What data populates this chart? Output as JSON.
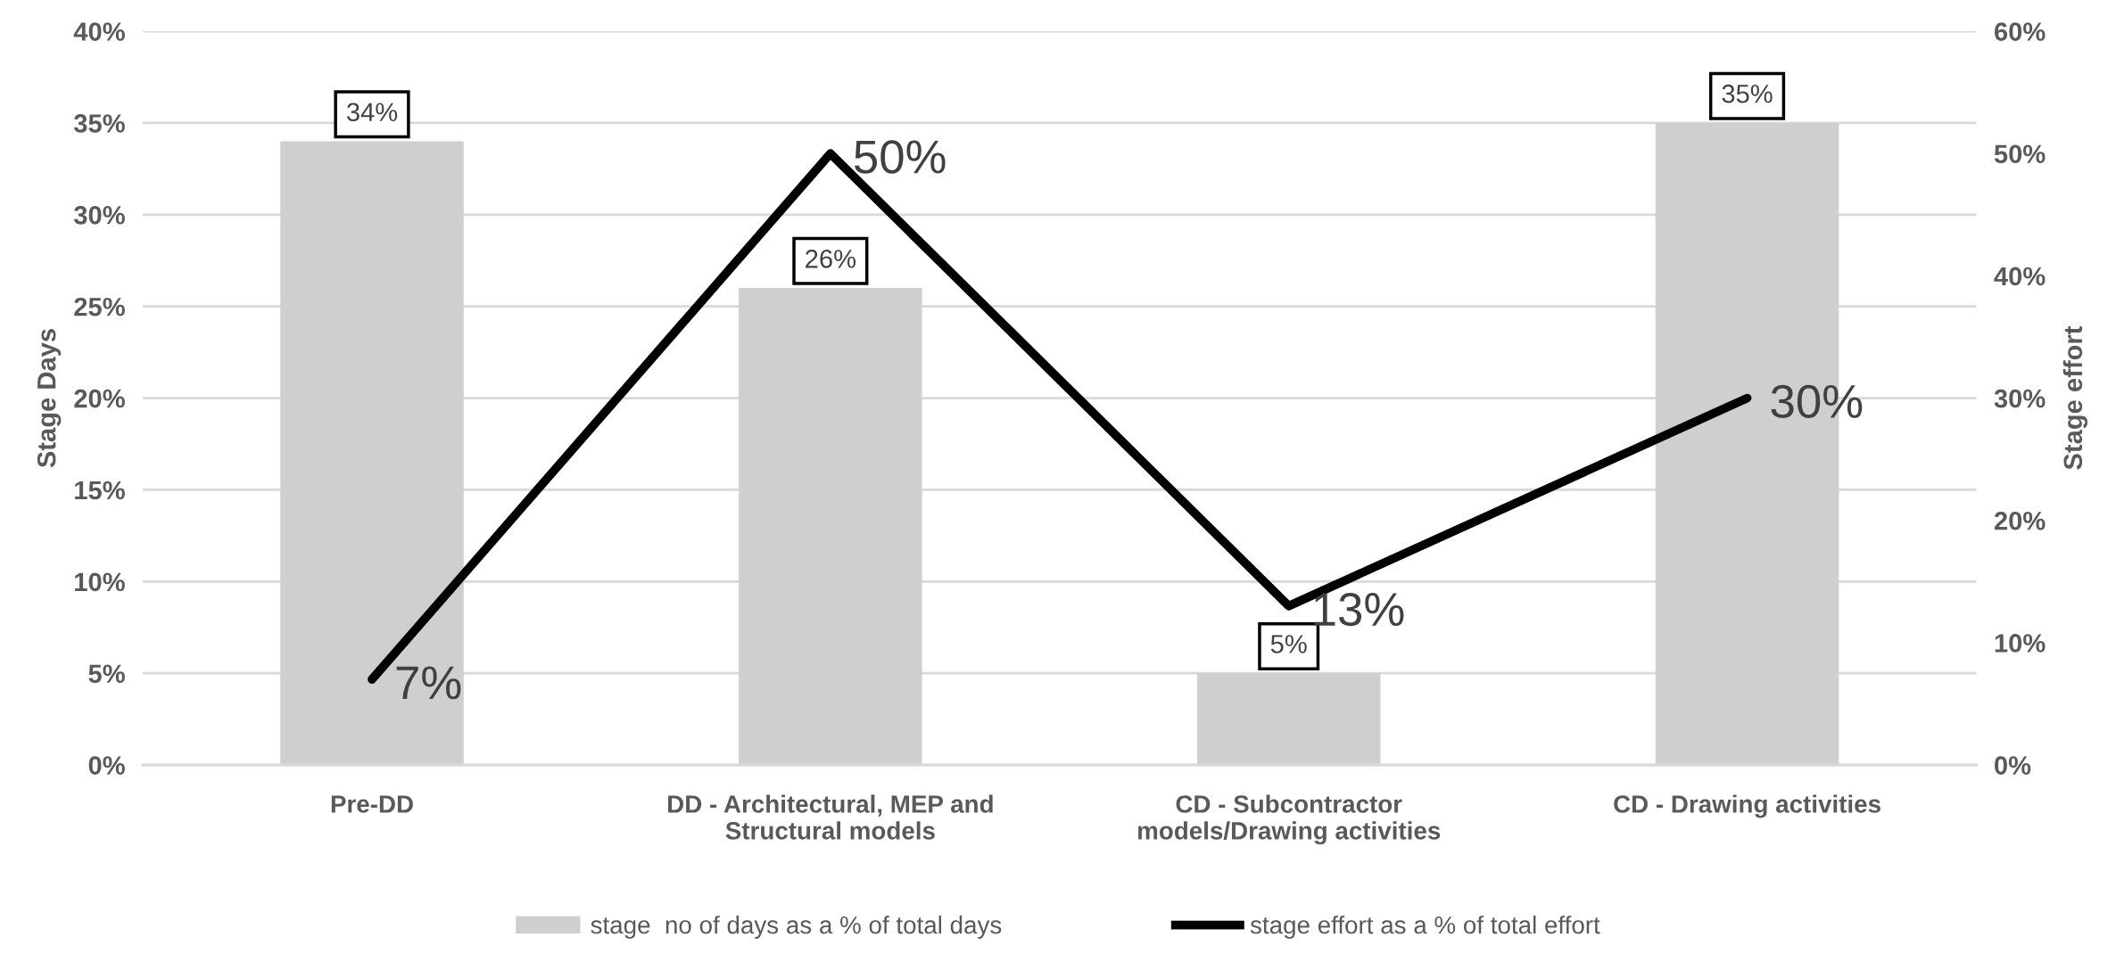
{
  "chart_data": {
    "type": "bar",
    "categories": [
      "Pre-DD",
      "DD - Architectural, MEP and\nStructural models",
      "CD - Subcontractor\nmodels/Drawing activities",
      "CD - Drawing activities"
    ],
    "ylabel": "Stage Days",
    "y2label": "Stage effort",
    "ylim": [
      0,
      40
    ],
    "yticks": [
      {
        "value": 0,
        "label": "0%"
      },
      {
        "value": 5,
        "label": "5%"
      },
      {
        "value": 10,
        "label": "10%"
      },
      {
        "value": 15,
        "label": "15%"
      },
      {
        "value": 20,
        "label": "20%"
      },
      {
        "value": 25,
        "label": "25%"
      },
      {
        "value": 30,
        "label": "30%"
      },
      {
        "value": 35,
        "label": "35%"
      },
      {
        "value": 40,
        "label": "40%"
      }
    ],
    "y2lim": [
      0,
      60
    ],
    "y2ticks": [
      {
        "value": 0,
        "label": "0%"
      },
      {
        "value": 10,
        "label": "10%"
      },
      {
        "value": 20,
        "label": "20%"
      },
      {
        "value": 30,
        "label": "30%"
      },
      {
        "value": 40,
        "label": "40%"
      },
      {
        "value": 50,
        "label": "50%"
      },
      {
        "value": 60,
        "label": "60%"
      }
    ],
    "grid": "y",
    "legend": "bottom",
    "series": [
      {
        "name": "stage  no of days as a % of total days",
        "color": "#d0cece",
        "values": [
          34,
          26,
          5,
          35
        ],
        "value_labels": [
          "34%",
          "26%",
          "5%",
          "35%"
        ]
      },
      {
        "name": "stage effort as a % of total effort",
        "type": "line",
        "axis": "y2",
        "color": "#000000",
        "values": [
          7,
          50,
          13,
          30
        ],
        "value_labels": [
          "7%",
          "50%",
          "13%",
          "30%"
        ]
      }
    ]
  }
}
